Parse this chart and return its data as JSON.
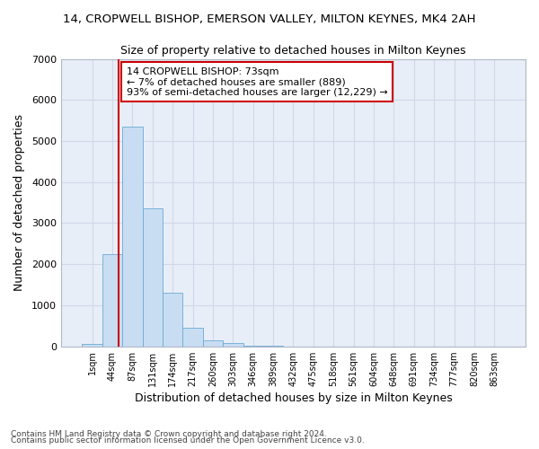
{
  "title": "14, CROPWELL BISHOP, EMERSON VALLEY, MILTON KEYNES, MK4 2AH",
  "subtitle": "Size of property relative to detached houses in Milton Keynes",
  "xlabel": "Distribution of detached houses by size in Milton Keynes",
  "ylabel": "Number of detached properties",
  "footnote1": "Contains HM Land Registry data © Crown copyright and database right 2024.",
  "footnote2": "Contains public sector information licensed under the Open Government Licence v3.0.",
  "categories": [
    "1sqm",
    "44sqm",
    "87sqm",
    "131sqm",
    "174sqm",
    "217sqm",
    "260sqm",
    "303sqm",
    "346sqm",
    "389sqm",
    "432sqm",
    "475sqm",
    "518sqm",
    "561sqm",
    "604sqm",
    "648sqm",
    "691sqm",
    "734sqm",
    "777sqm",
    "820sqm",
    "863sqm"
  ],
  "values": [
    50,
    2250,
    5350,
    3350,
    1300,
    450,
    150,
    80,
    25,
    5,
    2,
    0,
    0,
    0,
    0,
    0,
    0,
    0,
    0,
    0,
    0
  ],
  "bar_color": "#c9ddf2",
  "bar_edge_color": "#6aaad4",
  "grid_color": "#d0d8e8",
  "background_color": "#e8eef8",
  "vline_x": 1.3,
  "vline_color": "#cc0000",
  "annotation_text": "14 CROPWELL BISHOP: 73sqm\n← 7% of detached houses are smaller (889)\n93% of semi-detached houses are larger (12,229) →",
  "annotation_box_color": "white",
  "annotation_box_edge": "#cc0000",
  "ylim": [
    0,
    7000
  ],
  "yticks": [
    0,
    1000,
    2000,
    3000,
    4000,
    5000,
    6000,
    7000
  ]
}
